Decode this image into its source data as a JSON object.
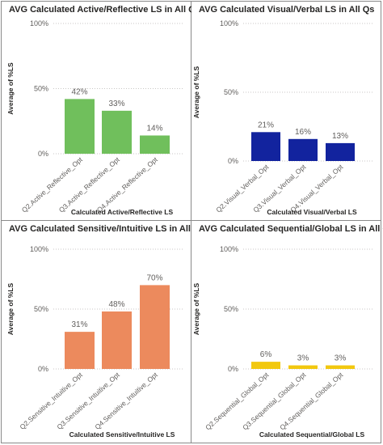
{
  "chart_data": [
    {
      "type": "bar",
      "title": "AVG Calculated Active/Reflective LS in All Qs",
      "xlabel": "Calculated Active/Reflective LS",
      "ylabel": "Average of %LS",
      "categories": [
        "Q2.Active_Reflective_Opt",
        "Q3.Active_Reflective_Opt",
        "Q4.Active_Reflective_Opt"
      ],
      "values": [
        42,
        33,
        14
      ],
      "data_labels": [
        "42%",
        "33%",
        "14%"
      ],
      "yticks": [
        "0%",
        "50%",
        "100%"
      ],
      "ylim": [
        0,
        100
      ],
      "color": "#70bf5c"
    },
    {
      "type": "bar",
      "title": "AVG Calculated Visual/Verbal LS in All Qs",
      "xlabel": "Calculated Visual/Verbal LS",
      "ylabel": "Average of %LS",
      "categories": [
        "Q2.Visual_Verbal_Opt",
        "Q3.Visual_Verbal_Opt",
        "Q4.Visual_Verbal_Opt"
      ],
      "values": [
        21,
        16,
        13
      ],
      "data_labels": [
        "21%",
        "16%",
        "13%"
      ],
      "yticks": [
        "0%",
        "50%",
        "100%"
      ],
      "ylim": [
        0,
        100
      ],
      "color": "#12239e"
    },
    {
      "type": "bar",
      "title": "AVG Calculated Sensitive/Intuitive LS in All Qs",
      "xlabel": "Calculated Sensitive/Intuitive LS",
      "ylabel": "Average of %LS",
      "categories": [
        "Q2.Sensitive_Intuitive_Opt",
        "Q3.Sensitive_Intuitive_Opt",
        "Q4.Sensitive_Intuitive_Opt"
      ],
      "values": [
        31,
        48,
        70
      ],
      "data_labels": [
        "31%",
        "48%",
        "70%"
      ],
      "yticks": [
        "0%",
        "50%",
        "100%"
      ],
      "ylim": [
        0,
        100
      ],
      "color": "#ec8a5d"
    },
    {
      "type": "bar",
      "title": "AVG Calculated Sequential/Global LS in All Qs",
      "xlabel": "Calculated Sequential/Global LS",
      "ylabel": "Average of %LS",
      "categories": [
        "Q2.Sequential_Global_Opt",
        "Q3.Sequential_Global_Opt",
        "Q4.Sequential_Global_Opt"
      ],
      "values": [
        6,
        3,
        3
      ],
      "data_labels": [
        "6%",
        "3%",
        "3%"
      ],
      "yticks": [
        "0%",
        "50%",
        "100%"
      ],
      "ylim": [
        0,
        100
      ],
      "color": "#f2c80f"
    }
  ]
}
